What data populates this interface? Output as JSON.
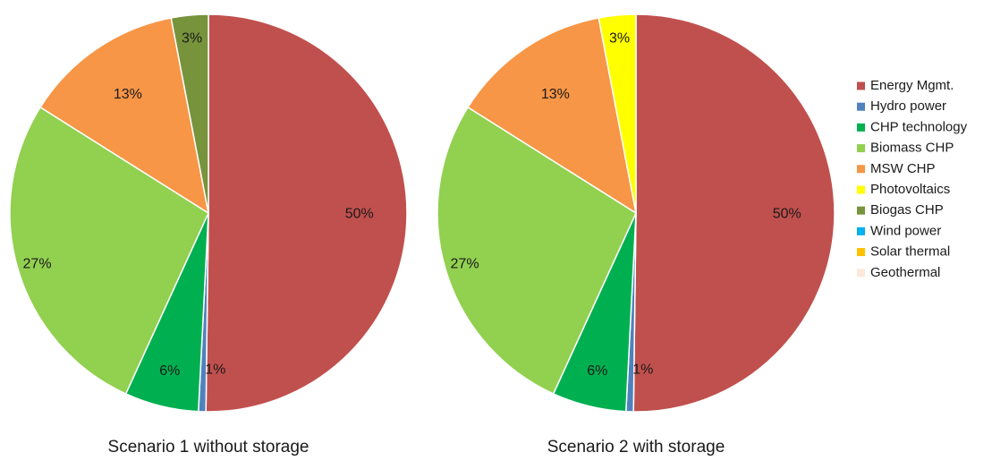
{
  "chart_data": [
    {
      "type": "pie",
      "title": "Scenario 1 without storage",
      "categories": [
        "Energy Mgmt.",
        "Hydro power",
        "CHP technology",
        "Biomass CHP",
        "MSW CHP",
        "Photovoltaics",
        "Biogas CHP",
        "Wind power",
        "Solar thermal",
        "Geothermal"
      ],
      "values": [
        50,
        0.6,
        6,
        27,
        13,
        0,
        3,
        0,
        0,
        0
      ],
      "data_labels": [
        "50%",
        "1%",
        "6%",
        "27%",
        "13%",
        "",
        "3%",
        "",
        "",
        ""
      ],
      "colors": [
        "#c0504d",
        "#4f81bd",
        "#00b050",
        "#92d050",
        "#f79646",
        "#ffff00",
        "#77933c",
        "#00b0f0",
        "#ffc000",
        "#fde9d9"
      ]
    },
    {
      "type": "pie",
      "title": "Scenario 2 with storage",
      "categories": [
        "Energy Mgmt.",
        "Hydro power",
        "CHP technology",
        "Biomass CHP",
        "MSW CHP",
        "Photovoltaics",
        "Biogas CHP",
        "Wind power",
        "Solar thermal",
        "Geothermal"
      ],
      "values": [
        50,
        0.6,
        6,
        27,
        13,
        3,
        0,
        0,
        0,
        0
      ],
      "data_labels": [
        "50%",
        "1%",
        "6%",
        "27%",
        "13%",
        "3%",
        "",
        "",
        "",
        ""
      ],
      "colors": [
        "#c0504d",
        "#4f81bd",
        "#00b050",
        "#92d050",
        "#f79646",
        "#ffff00",
        "#77933c",
        "#00b0f0",
        "#ffc000",
        "#fde9d9"
      ]
    }
  ],
  "legend": {
    "placement": "right",
    "entries": [
      {
        "label": "Energy Mgmt.",
        "color": "#c0504d"
      },
      {
        "label": "Hydro power",
        "color": "#4f81bd"
      },
      {
        "label": "CHP technology",
        "color": "#00b050"
      },
      {
        "label": "Biomass CHP",
        "color": "#92d050"
      },
      {
        "label": "MSW CHP",
        "color": "#f79646"
      },
      {
        "label": "Photovoltaics",
        "color": "#ffff00"
      },
      {
        "label": "Biogas CHP",
        "color": "#77933c"
      },
      {
        "label": "Wind power",
        "color": "#00b0f0"
      },
      {
        "label": "Solar thermal",
        "color": "#ffc000"
      },
      {
        "label": "Geothermal",
        "color": "#fde9d9"
      }
    ]
  }
}
